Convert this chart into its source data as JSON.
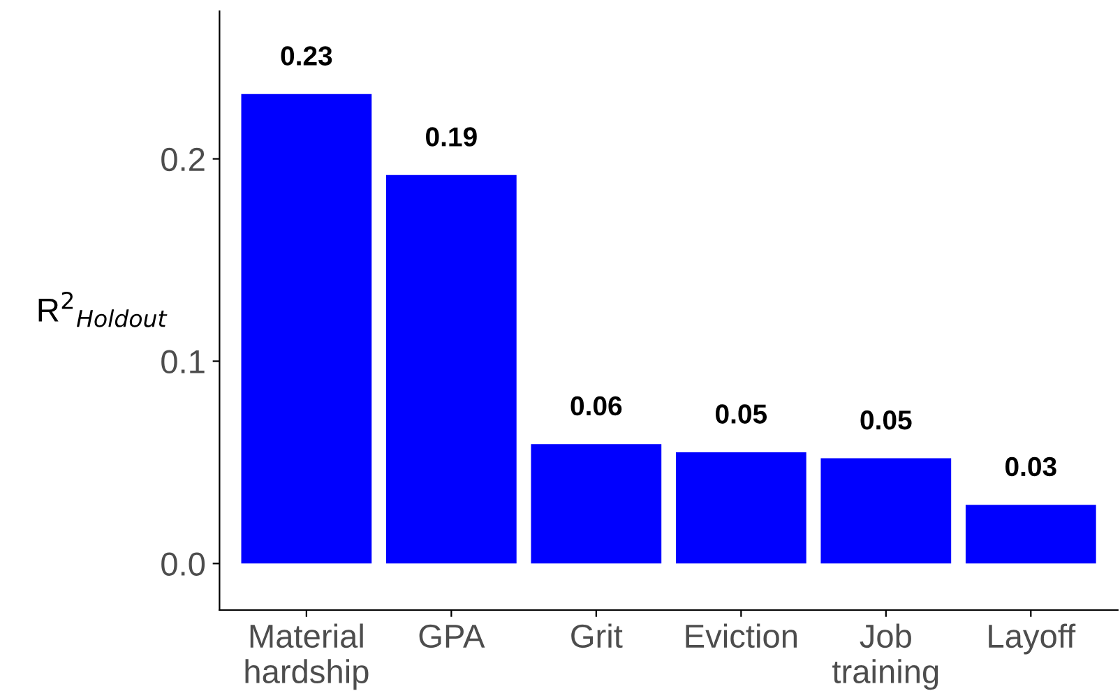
{
  "chart_data": {
    "type": "bar",
    "categories": [
      "Material\nhardship",
      "GPA",
      "Grit",
      "Eviction",
      "Job\ntraining",
      "Layoff"
    ],
    "values": [
      0.232,
      0.192,
      0.059,
      0.055,
      0.052,
      0.029
    ],
    "value_labels": [
      "0.23",
      "0.19",
      "0.06",
      "0.05",
      "0.05",
      "0.03"
    ],
    "color": "#0000ff",
    "ylabel": "R$^{2}$$_{Holdout}$",
    "ylim": [
      -0.023,
      0.273
    ],
    "yticks": [
      {
        "value": 0,
        "label": "0.0"
      },
      0.1,
      0.2
    ],
    "grid": false
  }
}
